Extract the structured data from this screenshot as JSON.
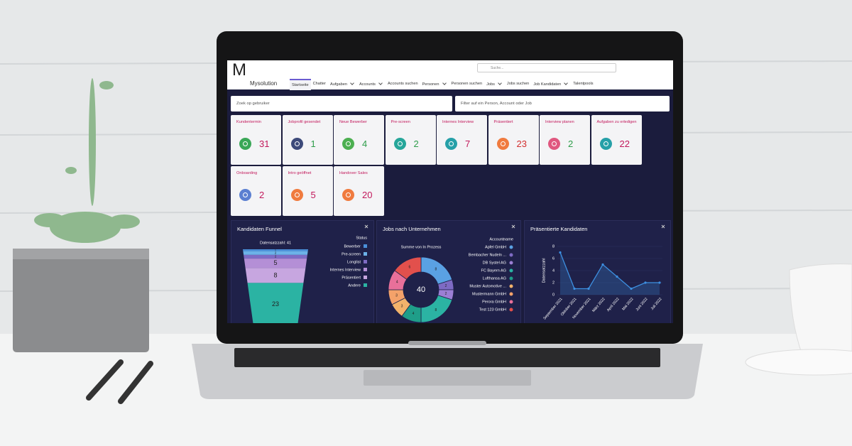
{
  "app": {
    "logo": "M",
    "name": "Mysolution",
    "search_placeholder": "Suche...",
    "nav": [
      {
        "label": "Startseite",
        "dropdown": false,
        "active": true
      },
      {
        "label": "Chatter",
        "dropdown": false
      },
      {
        "label": "Aufgaben",
        "dropdown": true
      },
      {
        "label": "Accounts",
        "dropdown": true
      },
      {
        "label": "Accounts suchen",
        "dropdown": false
      },
      {
        "label": "Personen",
        "dropdown": true
      },
      {
        "label": "Personen suchen",
        "dropdown": false
      },
      {
        "label": "Jobs",
        "dropdown": true
      },
      {
        "label": "Jobs suchen",
        "dropdown": false
      },
      {
        "label": "Job Kandidaten",
        "dropdown": true
      },
      {
        "label": "Talentpools",
        "dropdown": false
      }
    ]
  },
  "filters": {
    "user": "Zoek op gebruiker",
    "record": "Filter auf ein Person, Account oder Job"
  },
  "tiles": [
    {
      "label": "Kundentermin",
      "value": 31,
      "icon_color": "#3aa757",
      "value_color": "#c2185b"
    },
    {
      "label": "Jobprofil gesendet",
      "value": 1,
      "icon_color": "#3d4a7a",
      "value_color": "#2e9d4a"
    },
    {
      "label": "Neue Bewerber",
      "value": 4,
      "icon_color": "#4caf50",
      "value_color": "#2e9d4a"
    },
    {
      "label": "Pre-screen",
      "value": 2,
      "icon_color": "#26a69a",
      "value_color": "#2e9d4a"
    },
    {
      "label": "Internes Interview",
      "value": 7,
      "icon_color": "#26a0a8",
      "value_color": "#c2185b"
    },
    {
      "label": "Präsentiert",
      "value": 23,
      "icon_color": "#f07b3f",
      "value_color": "#d32f2f"
    },
    {
      "label": "Interview planen",
      "value": 2,
      "icon_color": "#e0577f",
      "value_color": "#2e9d4a"
    },
    {
      "label": "Aufgaben zu erledigen",
      "value": 22,
      "icon_color": "#26a0a8",
      "value_color": "#c2185b"
    },
    {
      "label": "Onboarding",
      "value": 2,
      "icon_color": "#5b7fd1",
      "value_color": "#c2185b"
    },
    {
      "label": "Intro geöffnet",
      "value": 5,
      "icon_color": "#f07b3f",
      "value_color": "#c2185b"
    },
    {
      "label": "Handover Sales",
      "value": 20,
      "icon_color": "#f07b3f",
      "value_color": "#c2185b"
    }
  ],
  "charts": [
    {
      "type": "funnel",
      "title": "Kandidaten Funnel",
      "subtitle": "Datensatzzahl: 41",
      "legend_title": "Status",
      "series": [
        {
          "name": "Bewerber",
          "color": "#4a90d9",
          "value": 1
        },
        {
          "name": "Pre-screen",
          "color": "#6cb2e8",
          "value": 2
        },
        {
          "name": "Longlist",
          "color": "#7e6bc4",
          "value": 2
        },
        {
          "name": "Internes Interview",
          "color": "#b48fd6",
          "value": 5
        },
        {
          "name": "Präsentiert",
          "color": "#c7a6e0",
          "value": 8
        },
        {
          "name": "Andere",
          "color": "#2bb3a3",
          "value": 23
        }
      ]
    },
    {
      "type": "donut",
      "title": "Jobs nach Unternehmen",
      "measure": "Summe von In Prozess",
      "total": 40,
      "legend_title": "Accountname",
      "series": [
        {
          "name": "Apfel GmbH",
          "color": "#5aa1e3",
          "value": 8
        },
        {
          "name": "Bembacher Nudeln ...",
          "color": "#7e6bc4",
          "value": 2
        },
        {
          "name": "DB Systel AG",
          "color": "#9b7fd4",
          "value": 2
        },
        {
          "name": "FC Bayern AG",
          "color": "#2bb3a3",
          "value": 8
        },
        {
          "name": "Lufthansa AG",
          "color": "#1f9e89",
          "value": 4
        },
        {
          "name": "Muster Automotive ...",
          "color": "#f2b36b",
          "value": 3
        },
        {
          "name": "Mustermann GmbH",
          "color": "#f4a26a",
          "value": 3
        },
        {
          "name": "Perora GmbH",
          "color": "#e8709a",
          "value": 4
        },
        {
          "name": "Test 123 GmbH",
          "color": "#e2504c",
          "value": 6
        }
      ]
    },
    {
      "type": "line",
      "title": "Präsentierte Kandidaten",
      "y_label": "Datensatzzahl",
      "color": "#3d8fe0",
      "categories": [
        "September 2021",
        "Oktober 2021",
        "November 2021",
        "März 2022",
        "April 2022",
        "Mai 2022",
        "Juni 2022",
        "Juli 2022"
      ],
      "values": [
        7,
        1,
        1,
        5,
        3,
        1,
        2,
        2
      ],
      "ylim": [
        0,
        8
      ],
      "yticks": [
        0,
        2,
        4,
        6,
        8
      ],
      "grid": true
    }
  ]
}
